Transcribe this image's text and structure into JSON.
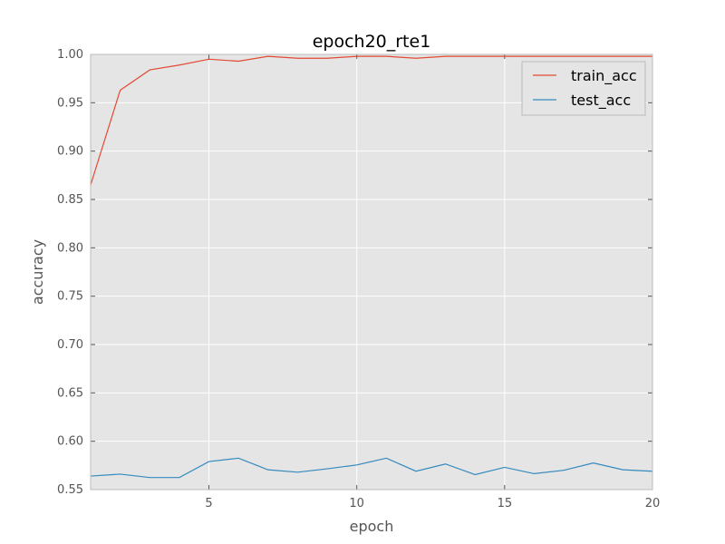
{
  "chart_data": {
    "type": "line",
    "title": "epoch20_rte1",
    "xlabel": "epoch",
    "ylabel": "accuracy",
    "xlim": [
      1,
      20
    ],
    "ylim": [
      0.55,
      1.0
    ],
    "xticks": [
      5,
      10,
      15,
      20
    ],
    "yticks": [
      0.55,
      0.6,
      0.65,
      0.7,
      0.75,
      0.8,
      0.85,
      0.9,
      0.95,
      1.0
    ],
    "grid": true,
    "legend_position": "top-right",
    "x": [
      1,
      2,
      3,
      4,
      5,
      6,
      7,
      8,
      9,
      10,
      11,
      12,
      13,
      14,
      15,
      16,
      17,
      18,
      19,
      20
    ],
    "series": [
      {
        "name": "train_acc",
        "color": "#e24a33",
        "values": [
          0.865,
          0.963,
          0.984,
          0.989,
          0.995,
          0.993,
          0.998,
          0.996,
          0.996,
          0.998,
          0.998,
          0.996,
          0.998,
          0.998,
          0.998,
          0.998,
          0.998,
          0.998,
          0.998,
          0.998
        ]
      },
      {
        "name": "test_acc",
        "color": "#348abd",
        "values": [
          0.564,
          0.566,
          0.5625,
          0.5625,
          0.579,
          0.5825,
          0.5705,
          0.568,
          0.5715,
          0.5755,
          0.5825,
          0.569,
          0.5765,
          0.5655,
          0.573,
          0.5665,
          0.57,
          0.5775,
          0.5705,
          0.569
        ]
      }
    ],
    "colors": {
      "plot_background": "#e5e5e5",
      "grid": "#ffffff",
      "tick_label": "#555555"
    }
  }
}
